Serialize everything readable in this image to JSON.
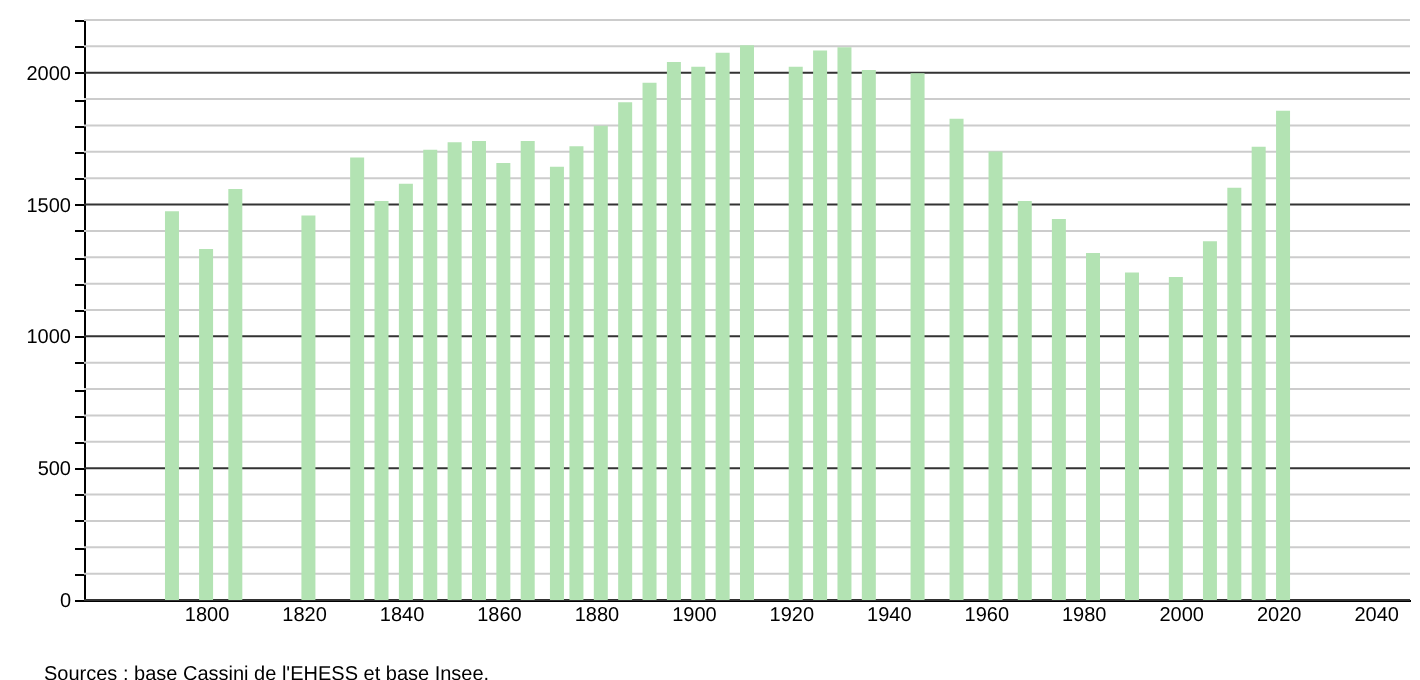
{
  "chart_data": {
    "type": "bar",
    "x": [
      1793,
      1800,
      1806,
      1821,
      1831,
      1836,
      1841,
      1846,
      1851,
      1856,
      1861,
      1866,
      1872,
      1876,
      1881,
      1886,
      1891,
      1896,
      1901,
      1906,
      1911,
      1921,
      1926,
      1931,
      1936,
      1946,
      1954,
      1962,
      1968,
      1975,
      1982,
      1990,
      1999,
      2006,
      2011,
      2016,
      2021
    ],
    "values": [
      1475,
      1331,
      1559,
      1458,
      1678,
      1513,
      1579,
      1708,
      1736,
      1741,
      1658,
      1741,
      1643,
      1721,
      1799,
      1888,
      1962,
      2041,
      2023,
      2076,
      2104,
      2023,
      2084,
      2097,
      2010,
      1998,
      1825,
      1701,
      1513,
      1445,
      1316,
      1242,
      1225,
      1361,
      1564,
      1719,
      1856
    ],
    "color": "#b3e3b3",
    "xlim": [
      1777,
      2045
    ],
    "xticks": [
      1800,
      1820,
      1840,
      1860,
      1880,
      1900,
      1920,
      1940,
      1960,
      1980,
      2000,
      2020,
      2040
    ],
    "ylim": [
      0,
      2200
    ],
    "yticks": [
      0,
      {
        "value": 100,
        "label": null
      },
      {
        "value": 200,
        "label": null
      },
      {
        "value": 300,
        "label": null
      },
      {
        "value": 400,
        "label": null
      },
      500,
      {
        "value": 600,
        "label": null
      },
      {
        "value": 700,
        "label": null
      },
      {
        "value": 800,
        "label": null
      },
      {
        "value": 900,
        "label": null
      },
      1000,
      {
        "value": 1100,
        "label": null
      },
      {
        "value": 1200,
        "label": null
      },
      {
        "value": 1300,
        "label": null
      },
      {
        "value": 1400,
        "label": null
      },
      1500,
      {
        "value": 1600,
        "label": null
      },
      {
        "value": 1700,
        "label": null
      },
      {
        "value": 1800,
        "label": null
      },
      {
        "value": 1900,
        "label": null
      },
      2000,
      {
        "value": 2100,
        "label": null
      },
      {
        "value": 2200,
        "label": null
      }
    ],
    "grid": true,
    "annotations": [
      "Sources : base Cassini de l'EHESS et base Insee."
    ]
  }
}
